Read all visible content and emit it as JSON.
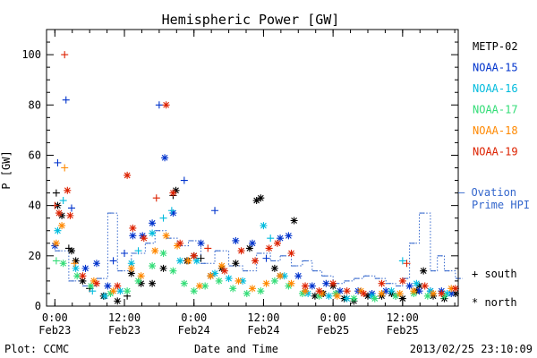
{
  "chart_data": {
    "type": "scatter",
    "title": "Hemispheric Power [GW]",
    "xlabel": "Date and Time",
    "ylabel": "P [GW]",
    "xlim": [
      -0.06,
      2.9
    ],
    "ylim": [
      0,
      110
    ],
    "y_ticks": [
      0,
      20,
      40,
      60,
      80,
      100
    ],
    "x_ticks": [
      {
        "x": 0.0,
        "time": "0:00",
        "date": "Feb23"
      },
      {
        "x": 0.5,
        "time": "12:00",
        "date": "Feb23"
      },
      {
        "x": 1.0,
        "time": "0:00",
        "date": "Feb24"
      },
      {
        "x": 1.5,
        "time": "12:00",
        "date": "Feb24"
      },
      {
        "x": 2.0,
        "time": "0:00",
        "date": "Feb25"
      },
      {
        "x": 2.5,
        "time": "12:00",
        "date": "Feb25"
      }
    ],
    "x_unit_note": "x in days since Feb23 0:00 UT",
    "legend_position": "right",
    "marker_legend": [
      {
        "symbol": "+",
        "label": "south"
      },
      {
        "symbol": "*",
        "label": "north"
      }
    ],
    "series": [
      {
        "name": "METP-02",
        "color": "#000000",
        "points": [
          [
            0.01,
            45,
            "+"
          ],
          [
            0.02,
            40,
            "*"
          ],
          [
            0.05,
            36,
            "*"
          ],
          [
            0.1,
            23,
            "+"
          ],
          [
            0.12,
            22,
            "*"
          ],
          [
            0.15,
            18,
            "*"
          ],
          [
            0.2,
            10,
            "*"
          ],
          [
            0.25,
            7,
            "+"
          ],
          [
            0.35,
            4,
            "*"
          ],
          [
            0.45,
            2,
            "*"
          ],
          [
            0.52,
            4,
            "+"
          ],
          [
            0.55,
            13,
            "*"
          ],
          [
            0.62,
            9,
            "*"
          ],
          [
            0.7,
            9,
            "*"
          ],
          [
            0.78,
            15,
            "*"
          ],
          [
            0.85,
            44,
            "+"
          ],
          [
            0.87,
            46,
            "*"
          ],
          [
            0.95,
            18,
            "*"
          ],
          [
            1.0,
            20,
            "*"
          ],
          [
            1.05,
            19,
            "+"
          ],
          [
            1.12,
            12,
            "*"
          ],
          [
            1.2,
            15,
            "*"
          ],
          [
            1.3,
            17,
            "*"
          ],
          [
            1.4,
            23,
            "*"
          ],
          [
            1.45,
            42,
            "*"
          ],
          [
            1.48,
            43,
            "*"
          ],
          [
            1.58,
            15,
            "*"
          ],
          [
            1.62,
            12,
            "*"
          ],
          [
            1.72,
            34,
            "*"
          ],
          [
            1.8,
            6,
            "*"
          ],
          [
            1.87,
            4,
            "*"
          ],
          [
            1.93,
            5,
            "*"
          ],
          [
            2.0,
            8,
            "*"
          ],
          [
            2.02,
            5,
            "+"
          ],
          [
            2.08,
            3,
            "*"
          ],
          [
            2.15,
            2,
            "*"
          ],
          [
            2.25,
            4,
            "*"
          ],
          [
            2.35,
            4,
            "*"
          ],
          [
            2.42,
            5,
            "*"
          ],
          [
            2.5,
            3,
            "*"
          ],
          [
            2.6,
            6,
            "*"
          ],
          [
            2.62,
            8,
            "*"
          ],
          [
            2.65,
            14,
            "*"
          ],
          [
            2.72,
            4,
            "*"
          ],
          [
            2.8,
            3,
            "*"
          ],
          [
            2.88,
            5,
            "*"
          ]
        ]
      },
      {
        "name": "NOAA-15",
        "color": "#0033cc",
        "points": [
          [
            0.0,
            24,
            "*"
          ],
          [
            0.02,
            57,
            "+"
          ],
          [
            0.08,
            82,
            "+"
          ],
          [
            0.12,
            39,
            "+"
          ],
          [
            0.22,
            15,
            "*"
          ],
          [
            0.3,
            17,
            "*"
          ],
          [
            0.38,
            8,
            "*"
          ],
          [
            0.42,
            18,
            "+"
          ],
          [
            0.5,
            21,
            "+"
          ],
          [
            0.56,
            28,
            "*"
          ],
          [
            0.63,
            28,
            "*"
          ],
          [
            0.7,
            33,
            "*"
          ],
          [
            0.75,
            80,
            "+"
          ],
          [
            0.79,
            59,
            "*"
          ],
          [
            0.85,
            37,
            "*"
          ],
          [
            0.93,
            50,
            "+"
          ],
          [
            1.05,
            25,
            "*"
          ],
          [
            1.15,
            38,
            "+"
          ],
          [
            1.3,
            26,
            "*"
          ],
          [
            1.42,
            25,
            "*"
          ],
          [
            1.52,
            19,
            "+"
          ],
          [
            1.62,
            27,
            "*"
          ],
          [
            1.68,
            28,
            "*"
          ],
          [
            1.75,
            12,
            "*"
          ],
          [
            1.85,
            8,
            "*"
          ],
          [
            1.95,
            9,
            "*"
          ],
          [
            2.05,
            6,
            "*"
          ],
          [
            2.18,
            6,
            "*"
          ],
          [
            2.28,
            5,
            "*"
          ],
          [
            2.38,
            6,
            "*"
          ],
          [
            2.45,
            4,
            "+"
          ],
          [
            2.55,
            8,
            "*"
          ],
          [
            2.62,
            6,
            "*"
          ],
          [
            2.7,
            6,
            "*"
          ],
          [
            2.78,
            6,
            "*"
          ],
          [
            2.85,
            5,
            "*"
          ]
        ]
      },
      {
        "name": "NOAA-16",
        "color": "#00bbdd",
        "points": [
          [
            0.02,
            30,
            "*"
          ],
          [
            0.06,
            42,
            "+"
          ],
          [
            0.15,
            15,
            "*"
          ],
          [
            0.27,
            6,
            "+"
          ],
          [
            0.36,
            4,
            "*"
          ],
          [
            0.47,
            6,
            "*"
          ],
          [
            0.55,
            17,
            "*"
          ],
          [
            0.6,
            22,
            "+"
          ],
          [
            0.7,
            29,
            "*"
          ],
          [
            0.78,
            35,
            "+"
          ],
          [
            0.84,
            38,
            "+"
          ],
          [
            0.9,
            18,
            "*"
          ],
          [
            1.02,
            18,
            "*"
          ],
          [
            1.15,
            13,
            "*"
          ],
          [
            1.25,
            11,
            "*"
          ],
          [
            1.35,
            10,
            "*"
          ],
          [
            1.5,
            32,
            "*"
          ],
          [
            1.55,
            27,
            "+"
          ],
          [
            1.65,
            12,
            "*"
          ],
          [
            1.82,
            5,
            "*"
          ],
          [
            1.97,
            4,
            "*"
          ],
          [
            2.1,
            3,
            "*"
          ],
          [
            2.28,
            4,
            "*"
          ],
          [
            2.42,
            6,
            "*"
          ],
          [
            2.5,
            18,
            "+"
          ],
          [
            2.6,
            9,
            "*"
          ],
          [
            2.7,
            6,
            "*"
          ],
          [
            2.82,
            5,
            "*"
          ]
        ]
      },
      {
        "name": "NOAA-17",
        "color": "#33dd77",
        "points": [
          [
            0.01,
            18,
            "+"
          ],
          [
            0.06,
            17,
            "*"
          ],
          [
            0.16,
            12,
            "*"
          ],
          [
            0.26,
            8,
            "*"
          ],
          [
            0.4,
            5,
            "*"
          ],
          [
            0.52,
            6,
            "*"
          ],
          [
            0.6,
            10,
            "*"
          ],
          [
            0.7,
            16,
            "*"
          ],
          [
            0.78,
            21,
            "*"
          ],
          [
            0.85,
            14,
            "*"
          ],
          [
            0.93,
            9,
            "*"
          ],
          [
            1.0,
            6,
            "*"
          ],
          [
            1.08,
            8,
            "*"
          ],
          [
            1.18,
            10,
            "*"
          ],
          [
            1.28,
            7,
            "*"
          ],
          [
            1.38,
            5,
            "*"
          ],
          [
            1.48,
            6,
            "*"
          ],
          [
            1.58,
            10,
            "*"
          ],
          [
            1.68,
            8,
            "*"
          ],
          [
            1.78,
            5,
            "*"
          ],
          [
            1.9,
            4,
            "*"
          ],
          [
            2.02,
            5,
            "*"
          ],
          [
            2.15,
            3,
            "*"
          ],
          [
            2.3,
            3,
            "*"
          ],
          [
            2.45,
            4,
            "*"
          ],
          [
            2.58,
            5,
            "*"
          ],
          [
            2.68,
            4,
            "*"
          ],
          [
            2.8,
            4,
            "*"
          ]
        ]
      },
      {
        "name": "NOAA-18",
        "color": "#ff8800",
        "points": [
          [
            0.01,
            25,
            "*"
          ],
          [
            0.05,
            32,
            "*"
          ],
          [
            0.07,
            55,
            "+"
          ],
          [
            0.14,
            17,
            "+"
          ],
          [
            0.28,
            10,
            "*"
          ],
          [
            0.42,
            6,
            "*"
          ],
          [
            0.55,
            15,
            "*"
          ],
          [
            0.62,
            12,
            "*"
          ],
          [
            0.72,
            22,
            "*"
          ],
          [
            0.8,
            28,
            "*"
          ],
          [
            0.88,
            24,
            "*"
          ],
          [
            0.96,
            18,
            "*"
          ],
          [
            1.04,
            8,
            "*"
          ],
          [
            1.12,
            12,
            "*"
          ],
          [
            1.2,
            16,
            "*"
          ],
          [
            1.32,
            10,
            "*"
          ],
          [
            1.42,
            7,
            "*"
          ],
          [
            1.52,
            9,
            "*"
          ],
          [
            1.62,
            12,
            "*"
          ],
          [
            1.7,
            9,
            "*"
          ],
          [
            1.8,
            6,
            "*"
          ],
          [
            1.92,
            5,
            "*"
          ],
          [
            2.03,
            4,
            "*"
          ],
          [
            2.2,
            6,
            "*"
          ],
          [
            2.35,
            5,
            "*"
          ],
          [
            2.48,
            5,
            "*"
          ],
          [
            2.58,
            6,
            "*"
          ],
          [
            2.72,
            5,
            "*"
          ],
          [
            2.85,
            7,
            "*"
          ]
        ]
      },
      {
        "name": "NOAA-19",
        "color": "#dd2200",
        "points": [
          [
            0.0,
            40,
            "+"
          ],
          [
            0.03,
            37,
            "*"
          ],
          [
            0.07,
            100,
            "+"
          ],
          [
            0.09,
            46,
            "*"
          ],
          [
            0.11,
            36,
            "*"
          ],
          [
            0.2,
            12,
            "*"
          ],
          [
            0.3,
            9,
            "*"
          ],
          [
            0.45,
            8,
            "*"
          ],
          [
            0.52,
            52,
            "*"
          ],
          [
            0.56,
            31,
            "*"
          ],
          [
            0.64,
            27,
            "*"
          ],
          [
            0.73,
            43,
            "+"
          ],
          [
            0.8,
            80,
            "*"
          ],
          [
            0.85,
            45,
            "*"
          ],
          [
            0.9,
            25,
            "*"
          ],
          [
            1.0,
            20,
            "*"
          ],
          [
            1.1,
            23,
            "+"
          ],
          [
            1.22,
            14,
            "*"
          ],
          [
            1.34,
            22,
            "*"
          ],
          [
            1.44,
            18,
            "*"
          ],
          [
            1.54,
            23,
            "*"
          ],
          [
            1.6,
            25,
            "*"
          ],
          [
            1.7,
            21,
            "*"
          ],
          [
            1.8,
            8,
            "*"
          ],
          [
            1.9,
            6,
            "*"
          ],
          [
            2.0,
            9,
            "*"
          ],
          [
            2.1,
            6,
            "*"
          ],
          [
            2.22,
            5,
            "*"
          ],
          [
            2.35,
            9,
            "*"
          ],
          [
            2.5,
            10,
            "*"
          ],
          [
            2.53,
            17,
            "+"
          ],
          [
            2.66,
            8,
            "*"
          ],
          [
            2.78,
            5,
            "*"
          ],
          [
            2.88,
            7,
            "*"
          ]
        ]
      }
    ],
    "ovation": {
      "name": "Ovation Prime HPI",
      "label_line1": "Ovation",
      "label_line2": "Prime HPI",
      "color": "#3366cc",
      "points": [
        [
          0.0,
          22
        ],
        [
          0.1,
          10
        ],
        [
          0.2,
          8
        ],
        [
          0.3,
          11
        ],
        [
          0.38,
          37
        ],
        [
          0.45,
          14
        ],
        [
          0.55,
          21
        ],
        [
          0.65,
          25
        ],
        [
          0.72,
          30
        ],
        [
          0.8,
          27
        ],
        [
          0.88,
          24
        ],
        [
          0.96,
          26
        ],
        [
          1.05,
          17
        ],
        [
          1.15,
          22
        ],
        [
          1.25,
          16
        ],
        [
          1.35,
          14
        ],
        [
          1.45,
          21
        ],
        [
          1.55,
          18
        ],
        [
          1.62,
          20
        ],
        [
          1.7,
          16
        ],
        [
          1.78,
          18
        ],
        [
          1.85,
          14
        ],
        [
          1.92,
          12
        ],
        [
          2.0,
          9
        ],
        [
          2.08,
          10
        ],
        [
          2.15,
          11
        ],
        [
          2.22,
          12
        ],
        [
          2.3,
          11
        ],
        [
          2.38,
          9
        ],
        [
          2.45,
          8
        ],
        [
          2.5,
          11
        ],
        [
          2.55,
          25
        ],
        [
          2.62,
          37
        ],
        [
          2.7,
          14
        ],
        [
          2.75,
          20
        ],
        [
          2.8,
          14
        ],
        [
          2.88,
          11
        ]
      ]
    }
  },
  "footer": {
    "left": "Plot: CCMC",
    "right": "2013/02/25 23:10:09"
  }
}
